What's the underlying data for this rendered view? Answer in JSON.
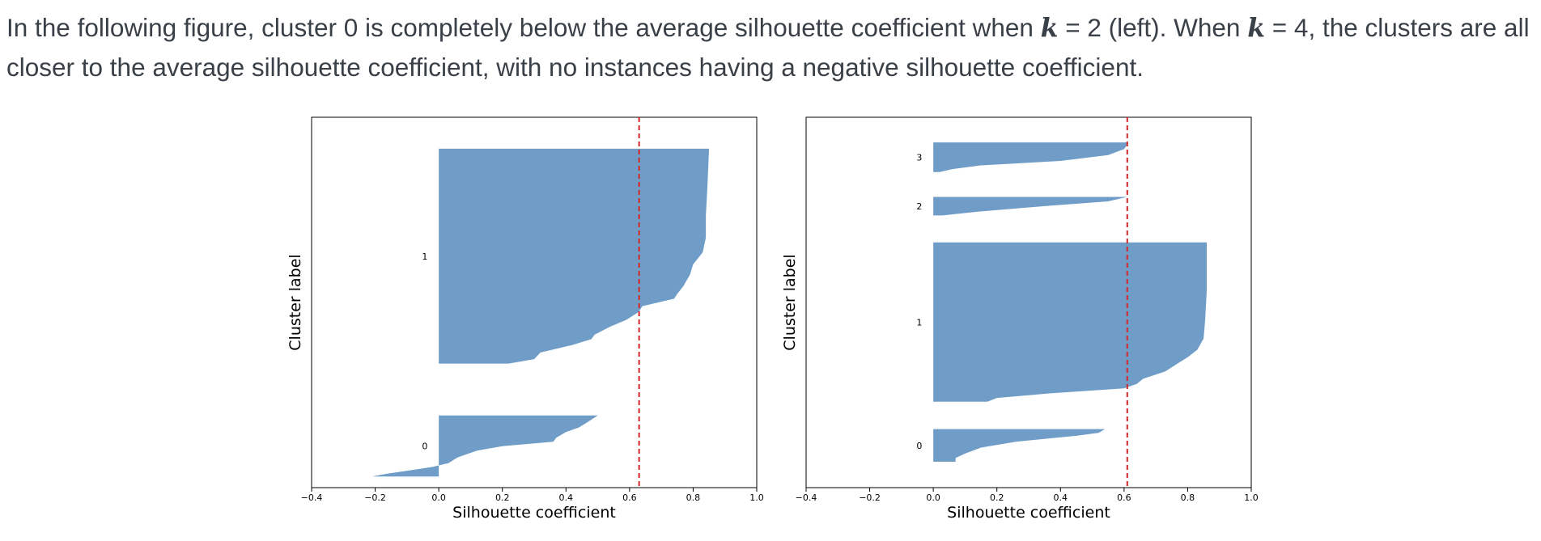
{
  "intro": {
    "part1": "In the following figure, cluster 0 is completely below the average silhouette coefficient when ",
    "k1": "k",
    "part2": " = 2 (left). When ",
    "k2": "k",
    "part3": " = 4, the clusters are all closer to the average silhouette coefficient, with no instances having a negative silhouette coefficient."
  },
  "colors": {
    "fill": "#6f9dc8",
    "average_line": "#d62728",
    "axes": "#000000"
  },
  "chart_data": [
    {
      "type": "area",
      "subtype": "silhouette",
      "xlabel": "Silhouette coefficient",
      "ylabel": "Cluster label",
      "xlim": [
        -0.4,
        1.0
      ],
      "xticks": [
        -0.4,
        -0.2,
        0.0,
        0.2,
        0.4,
        0.6,
        0.8,
        1.0
      ],
      "xtick_labels": [
        "−0.4",
        "−0.2",
        "0.0",
        "0.2",
        "0.4",
        "0.6",
        "0.8",
        "1.0"
      ],
      "average_silhouette": 0.63,
      "y_total": 1000,
      "clusters": [
        {
          "label": "0",
          "start": 30,
          "size": 165,
          "profile": [
            [
              0,
              -0.21
            ],
            [
              8,
              -0.16
            ],
            [
              18,
              -0.08
            ],
            [
              26,
              -0.02
            ],
            [
              36,
              0.03
            ],
            [
              52,
              0.06
            ],
            [
              70,
              0.12
            ],
            [
              82,
              0.2
            ],
            [
              94,
              0.36
            ],
            [
              105,
              0.37
            ],
            [
              120,
              0.4
            ],
            [
              132,
              0.44
            ],
            [
              148,
              0.47
            ],
            [
              165,
              0.5
            ]
          ]
        },
        {
          "label": "1",
          "start": 335,
          "size": 580,
          "profile": [
            [
              0,
              0.22
            ],
            [
              12,
              0.3
            ],
            [
              30,
              0.32
            ],
            [
              50,
              0.42
            ],
            [
              66,
              0.48
            ],
            [
              78,
              0.49
            ],
            [
              100,
              0.54
            ],
            [
              118,
              0.59
            ],
            [
              140,
              0.63
            ],
            [
              155,
              0.64
            ],
            [
              175,
              0.74
            ],
            [
              188,
              0.75
            ],
            [
              210,
              0.77
            ],
            [
              240,
              0.79
            ],
            [
              268,
              0.8
            ],
            [
              300,
              0.83
            ],
            [
              340,
              0.84
            ],
            [
              400,
              0.84
            ],
            [
              480,
              0.845
            ],
            [
              580,
              0.85
            ]
          ]
        }
      ]
    },
    {
      "type": "area",
      "subtype": "silhouette",
      "xlabel": "Silhouette coefficient",
      "ylabel": "Cluster label",
      "xlim": [
        -0.4,
        1.0
      ],
      "xticks": [
        -0.4,
        -0.2,
        0.0,
        0.2,
        0.4,
        0.6,
        0.8,
        1.0
      ],
      "xtick_labels": [
        "−0.4",
        "−0.2",
        "0.0",
        "0.2",
        "0.4",
        "0.6",
        "0.8",
        "1.0"
      ],
      "average_silhouette": 0.61,
      "y_total": 1000,
      "clusters": [
        {
          "label": "0",
          "start": 70,
          "size": 88,
          "profile": [
            [
              0,
              0.07
            ],
            [
              10,
              0.07
            ],
            [
              22,
              0.1
            ],
            [
              38,
              0.15
            ],
            [
              54,
              0.26
            ],
            [
              70,
              0.45
            ],
            [
              78,
              0.52
            ],
            [
              88,
              0.54
            ]
          ]
        },
        {
          "label": "1",
          "start": 232,
          "size": 430,
          "profile": [
            [
              0,
              0.17
            ],
            [
              10,
              0.2
            ],
            [
              22,
              0.36
            ],
            [
              36,
              0.6
            ],
            [
              48,
              0.64
            ],
            [
              62,
              0.66
            ],
            [
              82,
              0.73
            ],
            [
              104,
              0.77
            ],
            [
              120,
              0.8
            ],
            [
              140,
              0.83
            ],
            [
              170,
              0.85
            ],
            [
              220,
              0.855
            ],
            [
              300,
              0.86
            ],
            [
              430,
              0.86
            ]
          ]
        },
        {
          "label": "2",
          "start": 735,
          "size": 50,
          "profile": [
            [
              0,
              0.03
            ],
            [
              10,
              0.14
            ],
            [
              25,
              0.35
            ],
            [
              38,
              0.55
            ],
            [
              50,
              0.61
            ]
          ]
        },
        {
          "label": "3",
          "start": 852,
          "size": 80,
          "profile": [
            [
              0,
              0.02
            ],
            [
              8,
              0.06
            ],
            [
              18,
              0.15
            ],
            [
              30,
              0.4
            ],
            [
              46,
              0.55
            ],
            [
              62,
              0.6
            ],
            [
              74,
              0.61
            ],
            [
              80,
              0.61
            ]
          ]
        }
      ]
    }
  ]
}
